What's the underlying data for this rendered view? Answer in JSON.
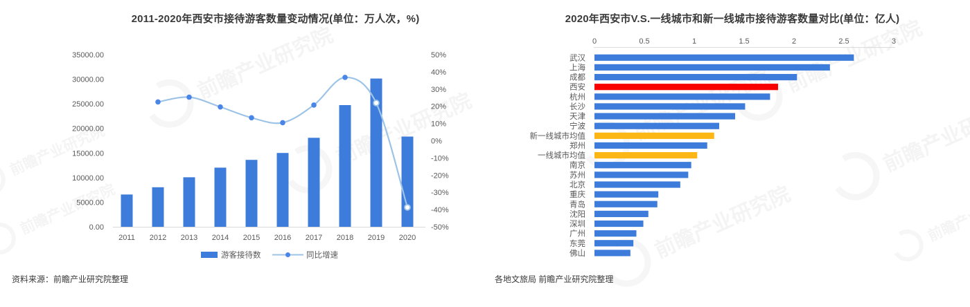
{
  "sources": {
    "left": "资料来源：前瞻产业研究院整理",
    "right": "各地文旅局 前瞻产业研究院整理"
  },
  "watermark": {
    "text": "前瞻产业研究院"
  },
  "colors": {
    "bar_blue": "#3e7cdb",
    "bar_red": "#f80000",
    "bar_gold": "#fdb714",
    "line_blue": "#9dc3e6",
    "marker_blue": "#4a86e8",
    "axis_line": "#d9d9d9",
    "axis_text": "#595959",
    "title_text": "#3a3a3a"
  },
  "chart_data": [
    {
      "type": "bar",
      "subtype": "combo-bar-line",
      "title": "2011-2020年西安市接待游客数量变动情况(单位：万人次，%)",
      "grid": false,
      "legend_position": "bottom",
      "categories": [
        "2011",
        "2012",
        "2013",
        "2014",
        "2015",
        "2016",
        "2017",
        "2018",
        "2019",
        "2020"
      ],
      "series": [
        {
          "name": "游客接待数",
          "kind": "bar",
          "axis": "left",
          "values": [
            6565,
            8039,
            10066,
            12025,
            13606,
            15009,
            18093,
            24739,
            30140,
            18342
          ]
        },
        {
          "name": "同比增速",
          "kind": "line",
          "axis": "right",
          "values": [
            null,
            22.4,
            25.2,
            19.5,
            13.2,
            10.3,
            20.6,
            36.7,
            21.8,
            -39.1
          ],
          "open_markers_from": "2019"
        }
      ],
      "left_axis": {
        "min": 0,
        "max": 35000,
        "step": 5000,
        "labels": [
          "0.00",
          "5000.00",
          "10000.00",
          "15000.00",
          "20000.00",
          "25000.00",
          "30000.00",
          "35000.00"
        ]
      },
      "right_axis": {
        "min": -50,
        "max": 50,
        "step": 10,
        "labels": [
          "50%",
          "40%",
          "30%",
          "20%",
          "10%",
          "0%",
          "-10%",
          "-20%",
          "-30%",
          "-40%",
          "-50%"
        ]
      }
    },
    {
      "type": "bar",
      "orientation": "horizontal",
      "title": "2020年西安市V.S.一线城市和新一线城市接待游客数量对比(单位：亿人)",
      "grid": false,
      "x_axis": {
        "min": 0,
        "max": 3,
        "step": 0.5,
        "position": "top",
        "labels": [
          "0",
          "0.5",
          "1",
          "1.5",
          "2",
          "2.5",
          "3"
        ]
      },
      "bars": [
        {
          "label": "武汉",
          "value": 2.6,
          "color": "blue"
        },
        {
          "label": "上海",
          "value": 2.36,
          "color": "blue"
        },
        {
          "label": "成都",
          "value": 2.03,
          "color": "blue"
        },
        {
          "label": "西安",
          "value": 1.84,
          "color": "red"
        },
        {
          "label": "杭州",
          "value": 1.76,
          "color": "blue"
        },
        {
          "label": "长沙",
          "value": 1.51,
          "color": "blue"
        },
        {
          "label": "天津",
          "value": 1.41,
          "color": "blue"
        },
        {
          "label": "宁波",
          "value": 1.25,
          "color": "blue"
        },
        {
          "label": "新一线城市均值",
          "value": 1.2,
          "color": "gold"
        },
        {
          "label": "郑州",
          "value": 1.13,
          "color": "blue"
        },
        {
          "label": "一线城市均值",
          "value": 1.03,
          "color": "gold"
        },
        {
          "label": "南京",
          "value": 0.97,
          "color": "blue"
        },
        {
          "label": "苏州",
          "value": 0.94,
          "color": "blue"
        },
        {
          "label": "北京",
          "value": 0.86,
          "color": "blue"
        },
        {
          "label": "重庆",
          "value": 0.64,
          "color": "blue"
        },
        {
          "label": "青岛",
          "value": 0.63,
          "color": "blue"
        },
        {
          "label": "沈阳",
          "value": 0.54,
          "color": "blue"
        },
        {
          "label": "深圳",
          "value": 0.49,
          "color": "blue"
        },
        {
          "label": "广州",
          "value": 0.42,
          "color": "blue"
        },
        {
          "label": "东莞",
          "value": 0.39,
          "color": "blue"
        },
        {
          "label": "佛山",
          "value": 0.36,
          "color": "blue"
        }
      ]
    }
  ]
}
